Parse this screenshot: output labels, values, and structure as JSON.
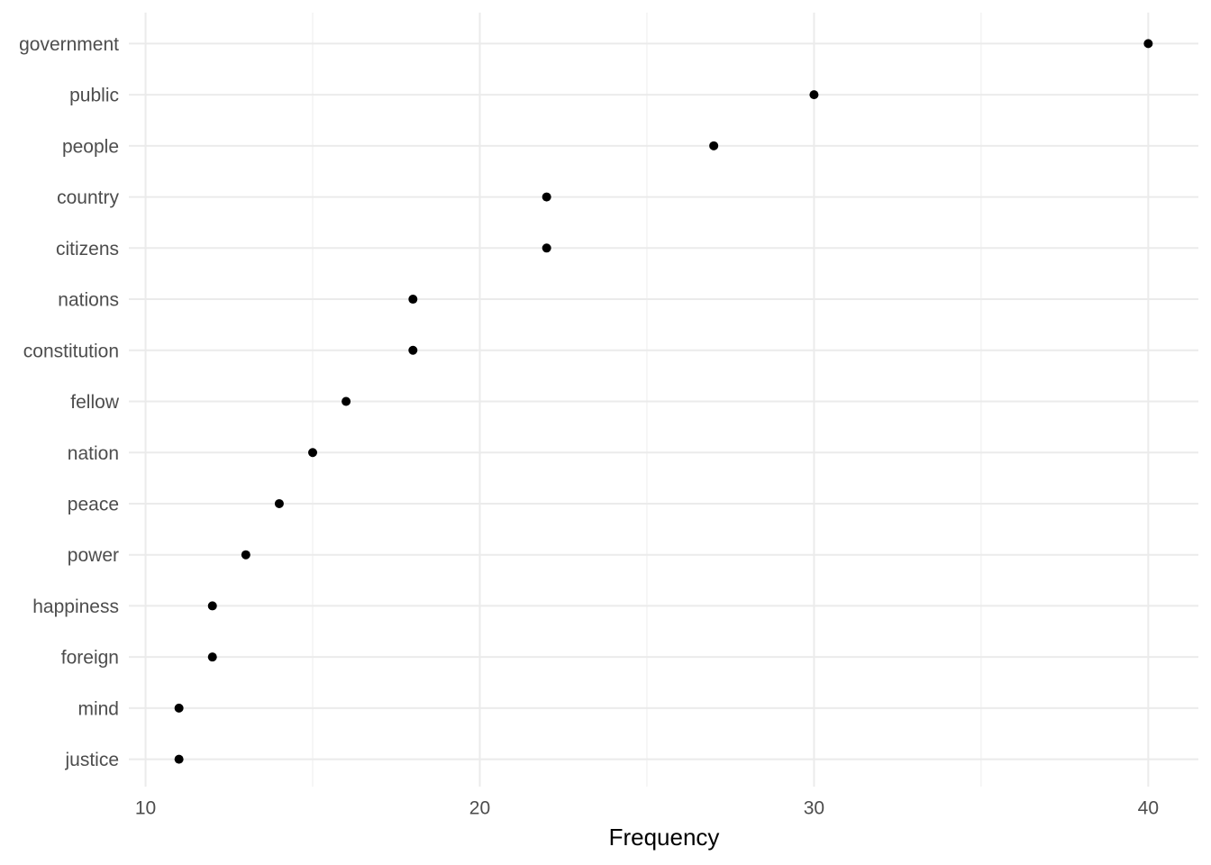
{
  "chart_data": {
    "type": "dot",
    "x_label": "Frequency",
    "categories": [
      "government",
      "public",
      "people",
      "country",
      "citizens",
      "nations",
      "constitution",
      "fellow",
      "nation",
      "peace",
      "power",
      "happiness",
      "foreign",
      "mind",
      "justice"
    ],
    "values": [
      40,
      30,
      27,
      22,
      22,
      18,
      18,
      16,
      15,
      14,
      13,
      12,
      12,
      11,
      11
    ],
    "color": "#000000",
    "xlim": [
      9.5,
      41.5
    ],
    "xticks": [
      10,
      20,
      30,
      40
    ],
    "xminorticks": [
      15,
      25,
      35
    ],
    "grid": true
  }
}
